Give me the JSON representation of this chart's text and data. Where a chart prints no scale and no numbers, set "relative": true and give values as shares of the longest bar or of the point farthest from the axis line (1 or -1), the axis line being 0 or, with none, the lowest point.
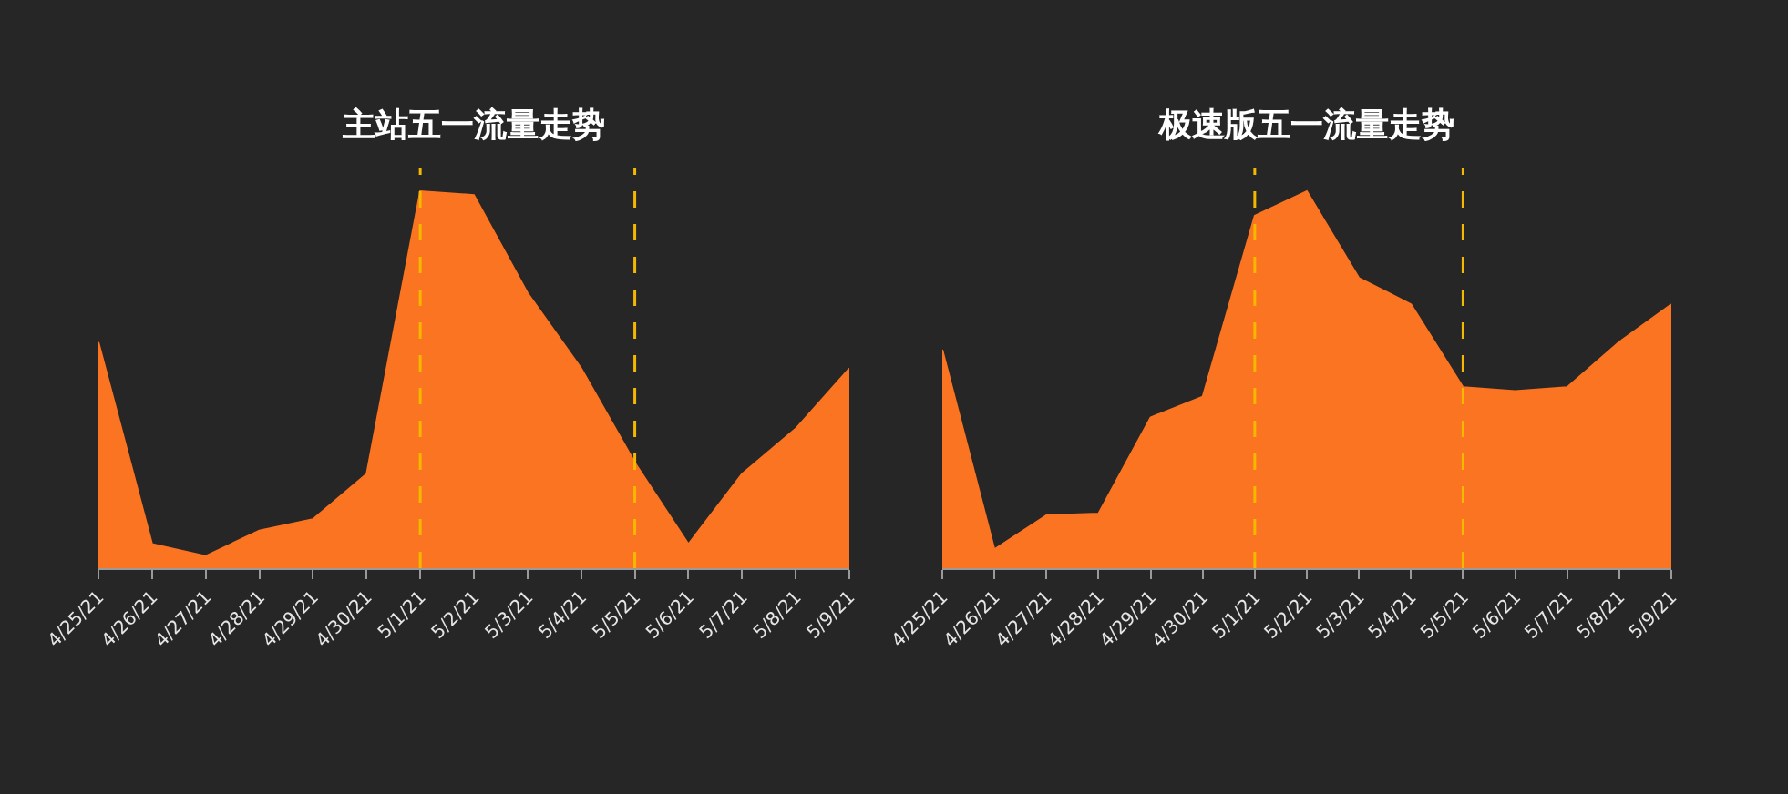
{
  "chart_data": [
    {
      "type": "area",
      "title": "主站五一流量走势",
      "categories": [
        "4/25/21",
        "4/26/21",
        "4/27/21",
        "4/28/21",
        "4/29/21",
        "4/30/21",
        "5/1/21",
        "5/2/21",
        "5/3/21",
        "5/4/21",
        "5/5/21",
        "5/6/21",
        "5/7/21",
        "5/8/21",
        "5/9/21"
      ],
      "values": [
        0.6,
        0.064,
        0.032,
        0.1,
        0.13,
        0.25,
        1,
        0.99,
        0.73,
        0.53,
        0.28,
        0.064,
        0.25,
        0.37,
        0.53
      ],
      "color": "#fb7421",
      "relative": true,
      "grid": false,
      "ref_lines": [
        {
          "axis": "x",
          "value": "5/1/21",
          "color": "#f5b800",
          "line_style": "dashed"
        },
        {
          "axis": "x",
          "value": "5/5/21",
          "color": "#f5b800",
          "line_style": "dashed"
        }
      ]
    },
    {
      "type": "area",
      "title": "极速版五一流量走势",
      "categories": [
        "4/25/21",
        "4/26/21",
        "4/27/21",
        "4/28/21",
        "4/29/21",
        "4/30/21",
        "5/1/21",
        "5/2/21",
        "5/3/21",
        "5/4/21",
        "5/5/21",
        "5/6/21",
        "5/7/21",
        "5/8/21",
        "5/9/21"
      ],
      "values": [
        0.58,
        0.05,
        0.14,
        0.145,
        0.4,
        0.455,
        0.935,
        1,
        0.77,
        0.7,
        0.48,
        0.47,
        0.48,
        0.6,
        0.7
      ],
      "color": "#fb7421",
      "relative": true,
      "grid": false,
      "ref_lines": [
        {
          "axis": "x",
          "value": "5/1/21",
          "color": "#f5b800",
          "line_style": "dashed"
        },
        {
          "axis": "x",
          "value": "5/5/21",
          "color": "#f5b800",
          "line_style": "dashed"
        }
      ]
    }
  ]
}
